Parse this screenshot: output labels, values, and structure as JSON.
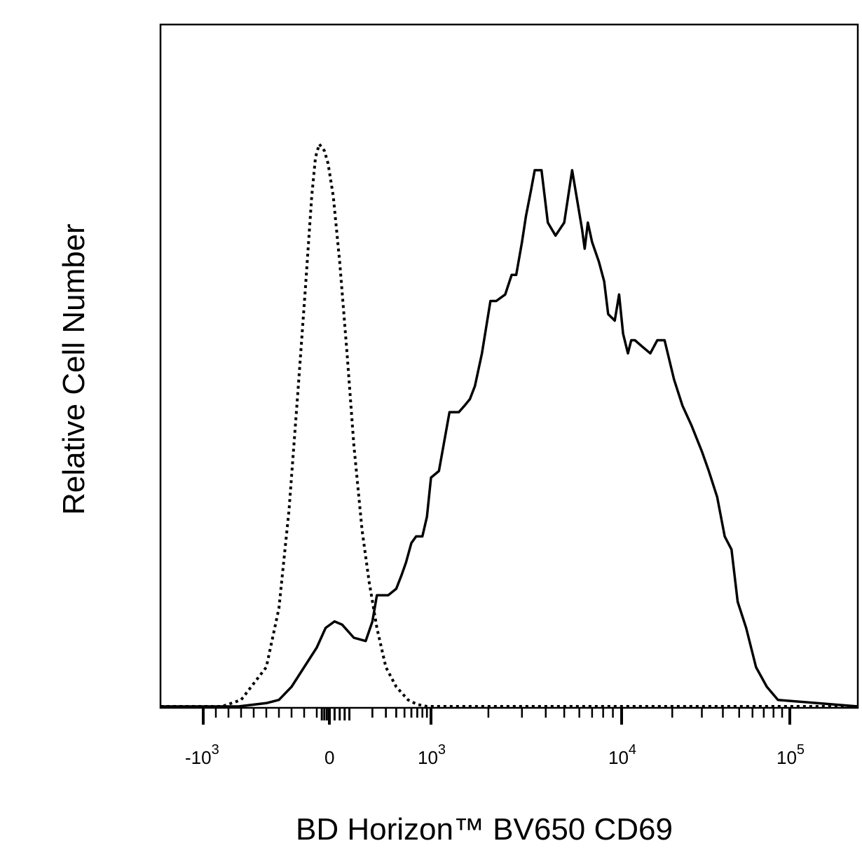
{
  "chart_data": {
    "type": "area",
    "xlabel": "BD Horizon™ BV650 CD69",
    "ylabel": "Relative Cell Number",
    "x_scale": "biexponential",
    "xlim": [
      -1500,
      130000
    ],
    "ylim": [
      0,
      100
    ],
    "grid": false,
    "x_ticks": [
      {
        "value": -1000,
        "base": "-10",
        "exp": "3"
      },
      {
        "value": 0,
        "base": "0",
        "exp": ""
      },
      {
        "value": 1000,
        "base": "10",
        "exp": "3"
      },
      {
        "value": 10000,
        "base": "10",
        "exp": "4"
      },
      {
        "value": 100000,
        "base": "10",
        "exp": "5"
      }
    ],
    "series": [
      {
        "style": "dotted",
        "x": [
          -1500,
          -850,
          -700,
          -500,
          -400,
          -320,
          -250,
          -190,
          -140,
          -110,
          -80,
          -40,
          -10,
          15,
          40,
          70,
          100,
          140,
          180,
          230,
          300,
          400,
          550,
          700,
          900,
          1100,
          130000
        ],
        "y": [
          0,
          0,
          1,
          6,
          15,
          30,
          48,
          64,
          78,
          84,
          86,
          85,
          83,
          78,
          68,
          54,
          40,
          27,
          19,
          12,
          6,
          3,
          1,
          0.3,
          0,
          0,
          0
        ]
      },
      {
        "style": "solid",
        "x": [
          -1500,
          -720,
          -500,
          -400,
          -300,
          -200,
          -100,
          -30,
          20,
          50,
          100,
          160,
          200,
          230,
          260,
          280,
          320,
          400,
          460,
          520,
          600,
          680,
          800,
          900,
          1000,
          1100,
          1250,
          1400,
          1500,
          1600,
          1700,
          1850,
          2050,
          2200,
          2450,
          2650,
          2800,
          3000,
          3150,
          3350,
          3500,
          3800,
          4100,
          4500,
          5000,
          5500,
          6200,
          6400,
          6650,
          7000,
          7600,
          8100,
          8500,
          9200,
          9700,
          10200,
          10900,
          11400,
          12000,
          13300,
          14800,
          16300,
          18000,
          20500,
          23000,
          26000,
          30000,
          33000,
          37000,
          41000,
          45000,
          49000,
          55000,
          63000,
          73000,
          85000,
          130000
        ],
        "y": [
          0,
          0,
          0.5,
          1,
          3,
          6,
          9,
          12,
          13,
          12.5,
          10.5,
          10,
          13,
          17,
          17,
          17,
          17,
          18,
          20,
          22,
          25,
          26,
          26,
          29,
          35,
          36,
          45,
          45,
          46,
          47,
          49,
          54,
          62,
          62,
          63,
          66,
          66,
          71,
          75,
          79,
          82,
          82,
          74,
          72,
          74,
          82,
          73,
          70,
          74,
          71,
          68,
          65,
          60,
          59,
          63,
          57,
          54,
          56,
          56,
          55,
          54,
          56,
          56,
          50,
          46,
          43,
          39,
          36,
          32,
          26,
          24,
          16,
          12,
          6,
          3,
          1,
          0
        ]
      }
    ]
  }
}
